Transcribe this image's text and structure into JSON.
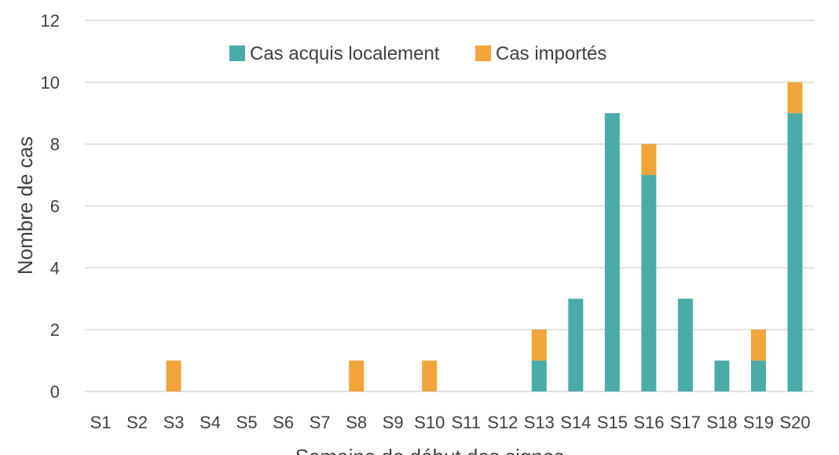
{
  "chart_data": {
    "type": "bar",
    "stacked": true,
    "categories": [
      "S1",
      "S2",
      "S3",
      "S4",
      "S5",
      "S6",
      "S7",
      "S8",
      "S9",
      "S10",
      "S11",
      "S12",
      "S13",
      "S14",
      "S15",
      "S16",
      "S17",
      "S18",
      "S19",
      "S20"
    ],
    "series": [
      {
        "name": "Cas acquis localement",
        "color": "#4aaca7",
        "values": [
          0,
          0,
          0,
          0,
          0,
          0,
          0,
          0,
          0,
          0,
          0,
          0,
          1,
          3,
          9,
          7,
          3,
          1,
          1,
          9
        ]
      },
      {
        "name": "Cas importés",
        "color": "#f0a43a",
        "values": [
          0,
          0,
          1,
          0,
          0,
          0,
          0,
          1,
          0,
          1,
          0,
          0,
          1,
          0,
          0,
          1,
          0,
          0,
          1,
          1
        ]
      }
    ],
    "xlabel": "Semaine de début des signes",
    "ylabel": "Nombre de cas",
    "ylim": [
      0,
      12
    ],
    "yticks": [
      0,
      2,
      4,
      6,
      8,
      10,
      12
    ],
    "grid": true,
    "legend_position": "top"
  }
}
